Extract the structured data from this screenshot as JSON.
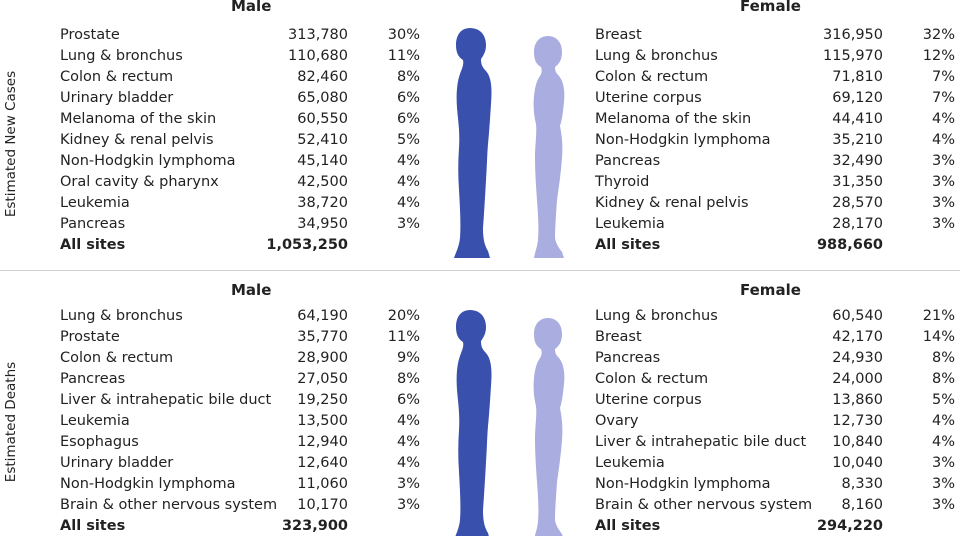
{
  "colors": {
    "male": "#3a50ad",
    "female": "#a9addf"
  },
  "chart_data": {
    "type": "table",
    "sections": [
      {
        "label": "Estimated New Cases",
        "male": {
          "header": "Male",
          "rows": [
            {
              "site": "Prostate",
              "count": "313,780",
              "pct": "30%"
            },
            {
              "site": "Lung & bronchus",
              "count": "110,680",
              "pct": "11%"
            },
            {
              "site": "Colon & rectum",
              "count": "82,460",
              "pct": "8%"
            },
            {
              "site": "Urinary bladder",
              "count": "65,080",
              "pct": "6%"
            },
            {
              "site": "Melanoma of the skin",
              "count": "60,550",
              "pct": "6%"
            },
            {
              "site": "Kidney & renal pelvis",
              "count": "52,410",
              "pct": "5%"
            },
            {
              "site": "Non-Hodgkin lymphoma",
              "count": "45,140",
              "pct": "4%"
            },
            {
              "site": "Oral cavity & pharynx",
              "count": "42,500",
              "pct": "4%"
            },
            {
              "site": "Leukemia",
              "count": "38,720",
              "pct": "4%"
            },
            {
              "site": "Pancreas",
              "count": "34,950",
              "pct": "3%"
            }
          ],
          "total": {
            "site": "All sites",
            "count": "1,053,250"
          }
        },
        "female": {
          "header": "Female",
          "rows": [
            {
              "site": "Breast",
              "count": "316,950",
              "pct": "32%"
            },
            {
              "site": "Lung & bronchus",
              "count": "115,970",
              "pct": "12%"
            },
            {
              "site": "Colon & rectum",
              "count": "71,810",
              "pct": "7%"
            },
            {
              "site": "Uterine corpus",
              "count": "69,120",
              "pct": "7%"
            },
            {
              "site": "Melanoma of the skin",
              "count": "44,410",
              "pct": "4%"
            },
            {
              "site": "Non-Hodgkin lymphoma",
              "count": "35,210",
              "pct": "4%"
            },
            {
              "site": "Pancreas",
              "count": "32,490",
              "pct": "3%"
            },
            {
              "site": "Thyroid",
              "count": "31,350",
              "pct": "3%"
            },
            {
              "site": "Kidney & renal pelvis",
              "count": "28,570",
              "pct": "3%"
            },
            {
              "site": "Leukemia",
              "count": "28,170",
              "pct": "3%"
            }
          ],
          "total": {
            "site": "All sites",
            "count": "988,660"
          }
        }
      },
      {
        "label": "Estimated Deaths",
        "male": {
          "header": "Male",
          "rows": [
            {
              "site": "Lung & bronchus",
              "count": "64,190",
              "pct": "20%"
            },
            {
              "site": "Prostate",
              "count": "35,770",
              "pct": "11%"
            },
            {
              "site": "Colon & rectum",
              "count": "28,900",
              "pct": "9%"
            },
            {
              "site": "Pancreas",
              "count": "27,050",
              "pct": "8%"
            },
            {
              "site": "Liver & intrahepatic bile duct",
              "count": "19,250",
              "pct": "6%"
            },
            {
              "site": "Leukemia",
              "count": "13,500",
              "pct": "4%"
            },
            {
              "site": "Esophagus",
              "count": "12,940",
              "pct": "4%"
            },
            {
              "site": "Urinary bladder",
              "count": "12,640",
              "pct": "4%"
            },
            {
              "site": "Non-Hodgkin lymphoma",
              "count": "11,060",
              "pct": "3%"
            },
            {
              "site": "Brain & other nervous system",
              "count": "10,170",
              "pct": "3%"
            }
          ],
          "total": {
            "site": "All sites",
            "count": "323,900"
          }
        },
        "female": {
          "header": "Female",
          "rows": [
            {
              "site": "Lung & bronchus",
              "count": "60,540",
              "pct": "21%"
            },
            {
              "site": "Breast",
              "count": "42,170",
              "pct": "14%"
            },
            {
              "site": "Pancreas",
              "count": "24,930",
              "pct": "8%"
            },
            {
              "site": "Colon & rectum",
              "count": "24,000",
              "pct": "8%"
            },
            {
              "site": "Uterine corpus",
              "count": "13,860",
              "pct": "5%"
            },
            {
              "site": "Ovary",
              "count": "12,730",
              "pct": "4%"
            },
            {
              "site": "Liver & intrahepatic bile duct",
              "count": "10,840",
              "pct": "4%"
            },
            {
              "site": "Leukemia",
              "count": "10,040",
              "pct": "3%"
            },
            {
              "site": "Non-Hodgkin lymphoma",
              "count": "8,330",
              "pct": "3%"
            },
            {
              "site": "Brain & other nervous system",
              "count": "8,160",
              "pct": "3%"
            }
          ],
          "total": {
            "site": "All sites",
            "count": "294,220"
          }
        }
      }
    ]
  }
}
